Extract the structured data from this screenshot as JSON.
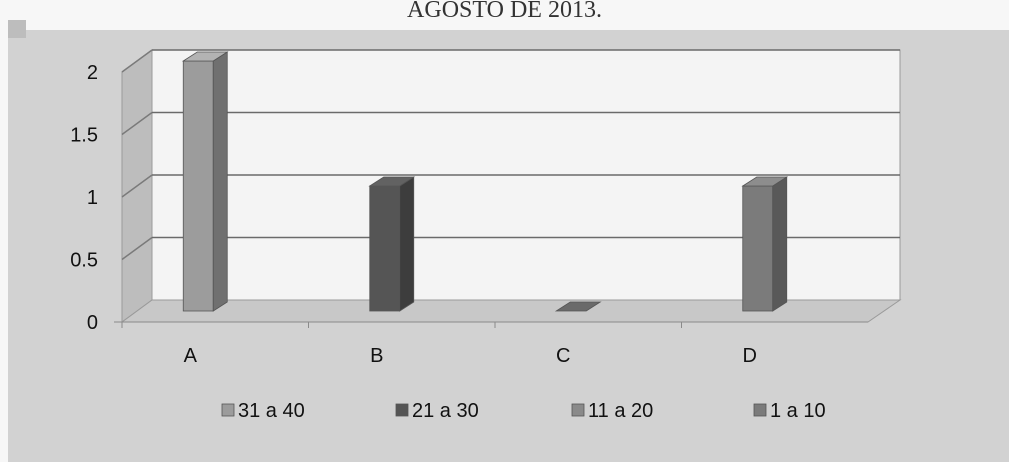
{
  "chart_data": {
    "type": "bar",
    "title": "AGOSTO DE 2013.",
    "categories": [
      "A",
      "B",
      "C",
      "D"
    ],
    "series": [
      {
        "name": "31 a 40",
        "values": [
          2,
          0,
          0,
          0
        ],
        "color": "#9c9c9c"
      },
      {
        "name": "21 a 30",
        "values": [
          0,
          1,
          0,
          0
        ],
        "color": "#555555"
      },
      {
        "name": "11 a 20",
        "values": [
          0,
          0,
          0,
          0
        ],
        "color": "#8a8a8a"
      },
      {
        "name": "1 a 10",
        "values": [
          0,
          0,
          0,
          1
        ],
        "color": "#7b7b7b"
      }
    ],
    "yticks": [
      "0",
      "0.5",
      "1",
      "1.5",
      "2"
    ],
    "ylim": [
      0,
      2
    ],
    "grid": true,
    "legend_position": "bottom",
    "style": "3d"
  }
}
